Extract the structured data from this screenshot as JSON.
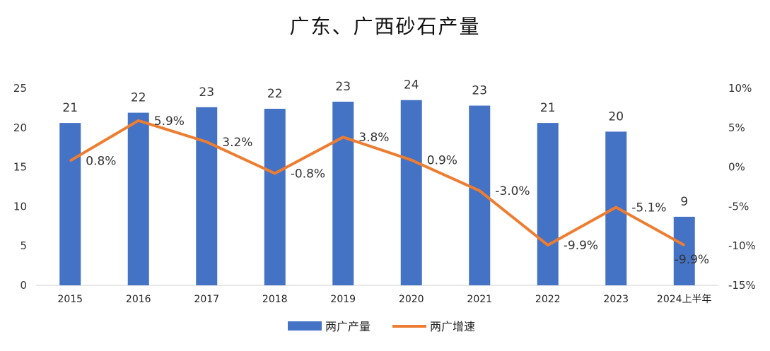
{
  "chart_data": {
    "type": "bar+line",
    "title": "广东、广西砂石产量",
    "categories": [
      "2015",
      "2016",
      "2017",
      "2018",
      "2019",
      "2020",
      "2021",
      "2022",
      "2023",
      "2024上半年"
    ],
    "series": [
      {
        "name": "两广产量",
        "type": "bar",
        "axis": "left",
        "color": "#4472C4",
        "values": [
          20.6,
          21.9,
          22.6,
          22.4,
          23.3,
          23.5,
          22.8,
          20.6,
          19.5,
          8.7
        ],
        "labels": [
          "21",
          "22",
          "23",
          "22",
          "23",
          "24",
          "23",
          "21",
          "20",
          "9"
        ]
      },
      {
        "name": "两广增速",
        "type": "line",
        "axis": "right",
        "color": "#ED7D31",
        "values": [
          0.8,
          5.9,
          3.2,
          -0.8,
          3.8,
          0.9,
          -3.0,
          -9.9,
          -5.1,
          -9.9
        ],
        "labels": [
          "0.8%",
          "5.9%",
          "3.2%",
          "-0.8%",
          "3.8%",
          "0.9%",
          "-3.0%",
          "-9.9%",
          "-5.1%",
          "-9.9%"
        ]
      }
    ],
    "y_left": {
      "min": 0,
      "max": 25,
      "ticks": [
        "0",
        "5",
        "10",
        "15",
        "20",
        "25"
      ]
    },
    "y_right": {
      "min": -15,
      "max": 10,
      "ticks": [
        "-15%",
        "-10%",
        "-5%",
        "0%",
        "5%",
        "10%"
      ]
    },
    "legend": "bottom",
    "grid": false
  }
}
